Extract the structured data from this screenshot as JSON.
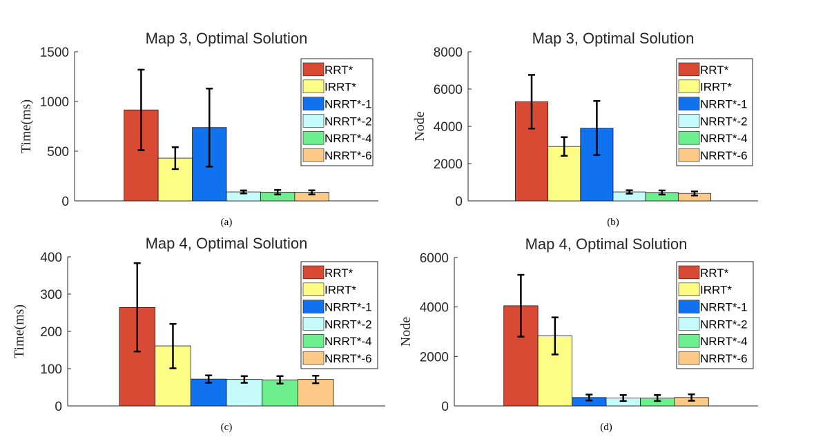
{
  "colors": {
    "RRT*": "#d94a35",
    "IRRT*": "#fdfc84",
    "NRRT*-1": "#1072ef",
    "NRRT*-2": "#c5fbfb",
    "NRRT*-4": "#6eef8e",
    "NRRT*-6": "#fdc987"
  },
  "chart_data": [
    {
      "id": "a",
      "type": "bar",
      "title": "Map 3, Optimal Solution",
      "ylabel": "Time(ms)",
      "caption": "(a)",
      "ylim": [
        0,
        1500
      ],
      "yticks": [
        0,
        500,
        1000,
        1500
      ],
      "series": [
        {
          "name": "RRT*",
          "value": 915,
          "err_low": 510,
          "err_high": 1320
        },
        {
          "name": "IRRT*",
          "value": 430,
          "err_low": 320,
          "err_high": 540
        },
        {
          "name": "NRRT*-1",
          "value": 738,
          "err_low": 345,
          "err_high": 1130
        },
        {
          "name": "NRRT*-2",
          "value": 90,
          "err_low": 75,
          "err_high": 105
        },
        {
          "name": "NRRT*-4",
          "value": 88,
          "err_low": 65,
          "err_high": 110
        },
        {
          "name": "NRRT*-6",
          "value": 86,
          "err_low": 65,
          "err_high": 106
        }
      ]
    },
    {
      "id": "b",
      "type": "bar",
      "title": "Map 3, Optimal Solution",
      "ylabel": "Node",
      "caption": "(b)",
      "ylim": [
        0,
        8000
      ],
      "yticks": [
        0,
        2000,
        4000,
        6000,
        8000
      ],
      "series": [
        {
          "name": "RRT*",
          "value": 5320,
          "err_low": 3880,
          "err_high": 6760
        },
        {
          "name": "IRRT*",
          "value": 2920,
          "err_low": 2420,
          "err_high": 3420
        },
        {
          "name": "NRRT*-1",
          "value": 3900,
          "err_low": 2460,
          "err_high": 5360
        },
        {
          "name": "NRRT*-2",
          "value": 480,
          "err_low": 390,
          "err_high": 570
        },
        {
          "name": "NRRT*-4",
          "value": 450,
          "err_low": 340,
          "err_high": 560
        },
        {
          "name": "NRRT*-6",
          "value": 400,
          "err_low": 290,
          "err_high": 510
        }
      ]
    },
    {
      "id": "c",
      "type": "bar",
      "title": "Map 4, Optimal Solution",
      "ylabel": "Time(ms)",
      "caption": "(c)",
      "ylim": [
        0,
        400
      ],
      "yticks": [
        0,
        100,
        200,
        300,
        400
      ],
      "series": [
        {
          "name": "RRT*",
          "value": 264,
          "err_low": 146,
          "err_high": 383
        },
        {
          "name": "IRRT*",
          "value": 161,
          "err_low": 101,
          "err_high": 220
        },
        {
          "name": "NRRT*-1",
          "value": 72,
          "err_low": 62,
          "err_high": 82
        },
        {
          "name": "NRRT*-2",
          "value": 71,
          "err_low": 62,
          "err_high": 80
        },
        {
          "name": "NRRT*-4",
          "value": 70,
          "err_low": 60,
          "err_high": 80
        },
        {
          "name": "NRRT*-6",
          "value": 71,
          "err_low": 61,
          "err_high": 81
        }
      ]
    },
    {
      "id": "d",
      "type": "bar",
      "title": "Map 4, Optimal Solution",
      "ylabel": "Node",
      "caption": "(d)",
      "ylim": [
        0,
        6000
      ],
      "yticks": [
        0,
        2000,
        4000,
        6000
      ],
      "series": [
        {
          "name": "RRT*",
          "value": 4050,
          "err_low": 2800,
          "err_high": 5300
        },
        {
          "name": "IRRT*",
          "value": 2830,
          "err_low": 2080,
          "err_high": 3580
        },
        {
          "name": "NRRT*-1",
          "value": 340,
          "err_low": 220,
          "err_high": 460
        },
        {
          "name": "NRRT*-2",
          "value": 320,
          "err_low": 200,
          "err_high": 440
        },
        {
          "name": "NRRT*-4",
          "value": 320,
          "err_low": 200,
          "err_high": 440
        },
        {
          "name": "NRRT*-6",
          "value": 340,
          "err_low": 210,
          "err_high": 470
        }
      ]
    }
  ]
}
